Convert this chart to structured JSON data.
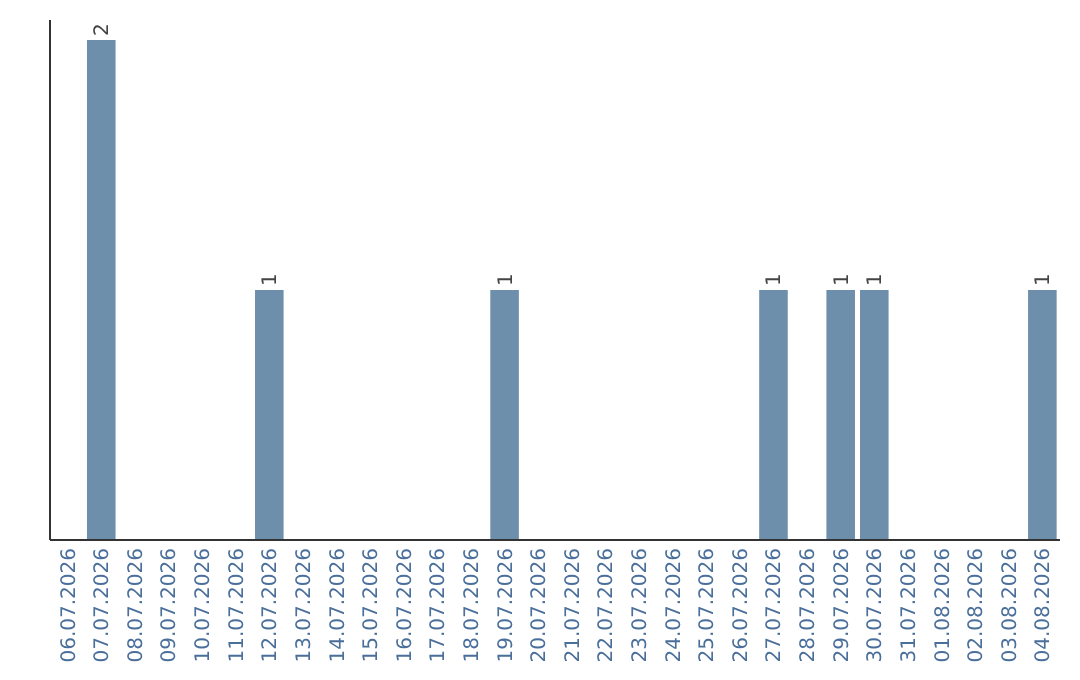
{
  "chart_data": {
    "type": "bar",
    "categories": [
      "06.07.2026",
      "07.07.2026",
      "08.07.2026",
      "09.07.2026",
      "10.07.2026",
      "11.07.2026",
      "12.07.2026",
      "13.07.2026",
      "14.07.2026",
      "15.07.2026",
      "16.07.2026",
      "17.07.2026",
      "18.07.2026",
      "19.07.2026",
      "20.07.2026",
      "21.07.2026",
      "22.07.2026",
      "23.07.2026",
      "24.07.2026",
      "25.07.2026",
      "26.07.2026",
      "27.07.2026",
      "28.07.2026",
      "29.07.2026",
      "30.07.2026",
      "31.07.2026",
      "01.08.2026",
      "02.08.2026",
      "03.08.2026",
      "04.08.2026"
    ],
    "values": [
      0,
      2,
      0,
      0,
      0,
      0,
      1,
      0,
      0,
      0,
      0,
      0,
      0,
      1,
      0,
      0,
      0,
      0,
      0,
      0,
      0,
      1,
      0,
      1,
      1,
      0,
      0,
      0,
      0,
      1
    ],
    "value_labels": [
      null,
      "2",
      null,
      null,
      null,
      null,
      "1",
      null,
      null,
      null,
      null,
      null,
      null,
      "1",
      null,
      null,
      null,
      null,
      null,
      null,
      null,
      "1",
      null,
      "1",
      "1",
      null,
      null,
      null,
      null,
      "1"
    ],
    "color": "#6d8fab",
    "ylim": [
      0,
      2.08
    ],
    "tick_labels": "x"
  }
}
